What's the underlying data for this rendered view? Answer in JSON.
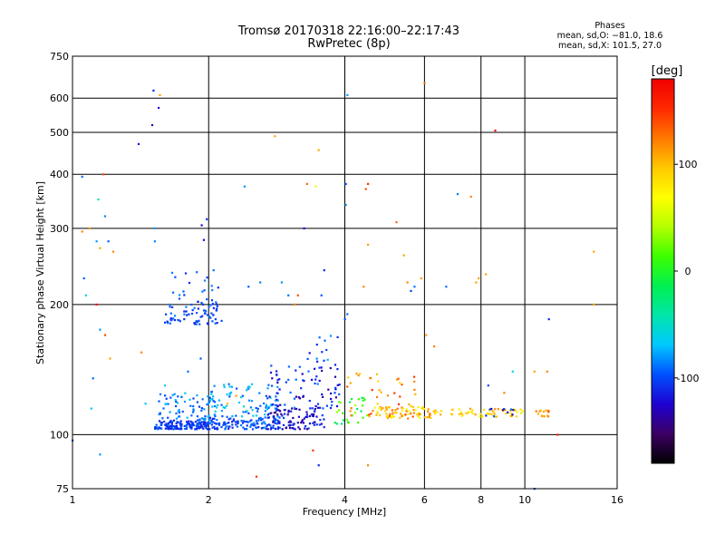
{
  "chart_data": {
    "type": "scatter",
    "title": "Tromsø 20170318 22:16:00–22:17:43",
    "subtitle": "RwPretec (8p)",
    "xlabel": "Frequency [MHz]",
    "ylabel": "Stationary phase Virtual Height [km]",
    "xscale": "log",
    "yscale": "log",
    "xlim": [
      1,
      16
    ],
    "ylim": [
      75,
      750
    ],
    "xticks": [
      1,
      2,
      4,
      6,
      8,
      10,
      16
    ],
    "xtick_labels": [
      "1",
      "2",
      "4",
      "6",
      "8",
      "10",
      "16"
    ],
    "yticks": [
      75,
      100,
      200,
      300,
      400,
      500,
      600,
      750
    ],
    "ytick_labels": [
      "75",
      "100",
      "200",
      "300",
      "400",
      "500",
      "600",
      "750"
    ],
    "grid": true,
    "colorbar": {
      "label": "[deg]",
      "range": [
        -180,
        180
      ],
      "ticks": [
        100,
        0,
        -100
      ],
      "tick_labels": [
        "100",
        "0",
        "-100"
      ],
      "colors": [
        "#000000",
        "#3c0064",
        "#1e00d2",
        "#0050ff",
        "#00c8ff",
        "#00e6aa",
        "#00f050",
        "#3cff00",
        "#b4ff00",
        "#ffff00",
        "#ffc800",
        "#ff7800",
        "#ff2800",
        "#f00000"
      ]
    },
    "stats": {
      "heading": "Phases",
      "line1": "mean, sd,O: −81.0, 18.6",
      "line2": "mean, sd,X: 101.5, 27.0"
    },
    "clusters": [
      {
        "f": [
          1.52,
          2.0
        ],
        "h": [
          103,
          108
        ],
        "phase": [
          -120,
          -90
        ],
        "n": 150
      },
      {
        "f": [
          1.55,
          2.05
        ],
        "h": [
          108,
          125
        ],
        "phase": [
          -110,
          -65
        ],
        "n": 70
      },
      {
        "f": [
          2.0,
          2.9
        ],
        "h": [
          103,
          110
        ],
        "phase": [
          -115,
          -85
        ],
        "n": 110
      },
      {
        "f": [
          2.0,
          2.9
        ],
        "h": [
          110,
          132
        ],
        "phase": [
          -100,
          -55
        ],
        "n": 90
      },
      {
        "f": [
          2.7,
          3.6
        ],
        "h": [
          103,
          115
        ],
        "phase": [
          -150,
          -100
        ],
        "n": 90
      },
      {
        "f": [
          2.7,
          3.9
        ],
        "h": [
          115,
          145
        ],
        "phase": [
          -140,
          -80
        ],
        "n": 80
      },
      {
        "f": [
          3.3,
          3.9
        ],
        "h": [
          145,
          170
        ],
        "phase": [
          -120,
          -70
        ],
        "n": 14
      },
      {
        "f": [
          1.6,
          2.15
        ],
        "h": [
          180,
          205
        ],
        "phase": [
          -115,
          -85
        ],
        "n": 75
      },
      {
        "f": [
          1.65,
          2.1
        ],
        "h": [
          205,
          238
        ],
        "phase": [
          -110,
          -80
        ],
        "n": 18
      },
      {
        "f": [
          3.8,
          4.6
        ],
        "h": [
          106,
          122
        ],
        "phase": [
          -40,
          40
        ],
        "n": 28
      },
      {
        "f": [
          4.0,
          5.8
        ],
        "h": [
          110,
          140
        ],
        "phase": [
          80,
          150
        ],
        "n": 50
      },
      {
        "f": [
          4.6,
          6.2
        ],
        "h": [
          109,
          116
        ],
        "phase": [
          60,
          130
        ],
        "n": 60
      },
      {
        "f": [
          6.0,
          10.0
        ],
        "h": [
          110,
          115
        ],
        "phase": [
          70,
          120
        ],
        "n": 60
      },
      {
        "f": [
          8.2,
          9.5
        ],
        "h": [
          110,
          115
        ],
        "phase": [
          -140,
          -90
        ],
        "n": 10
      },
      {
        "f": [
          10.5,
          11.3
        ],
        "h": [
          110,
          114
        ],
        "phase": [
          100,
          140
        ],
        "n": 14
      }
    ],
    "scattered": [
      [
        1.0,
        97,
        -100
      ],
      [
        1.05,
        395,
        -90
      ],
      [
        1.07,
        210,
        -60
      ],
      [
        1.06,
        230,
        -95
      ],
      [
        1.09,
        300,
        115
      ],
      [
        1.05,
        295,
        120
      ],
      [
        1.17,
        400,
        140
      ],
      [
        1.13,
        280,
        -80
      ],
      [
        1.14,
        350,
        -40
      ],
      [
        1.13,
        200,
        170
      ],
      [
        1.15,
        270,
        110
      ],
      [
        1.18,
        170,
        140
      ],
      [
        1.15,
        175,
        -80
      ],
      [
        1.11,
        135,
        -90
      ],
      [
        1.21,
        150,
        110
      ],
      [
        1.18,
        320,
        -85
      ],
      [
        1.2,
        280,
        -95
      ],
      [
        1.23,
        265,
        120
      ],
      [
        1.1,
        115,
        -70
      ],
      [
        1.15,
        90,
        -80
      ],
      [
        1.4,
        470,
        -120
      ],
      [
        1.42,
        155,
        120
      ],
      [
        1.5,
        520,
        -130
      ],
      [
        1.51,
        625,
        -110
      ],
      [
        1.52,
        300,
        -80
      ],
      [
        1.52,
        280,
        -85
      ],
      [
        1.55,
        570,
        -120
      ],
      [
        1.56,
        610,
        110
      ],
      [
        1.93,
        305,
        -125
      ],
      [
        1.98,
        315,
        -110
      ],
      [
        1.95,
        282,
        -120
      ],
      [
        2.05,
        240,
        -90
      ],
      [
        1.92,
        150,
        -95
      ],
      [
        1.8,
        140,
        -90
      ],
      [
        2.4,
        375,
        -80
      ],
      [
        2.8,
        490,
        110
      ],
      [
        2.55,
        80,
        150
      ],
      [
        2.45,
        220,
        -95
      ],
      [
        2.6,
        225,
        -85
      ],
      [
        2.9,
        225,
        -80
      ],
      [
        3.0,
        210,
        -90
      ],
      [
        3.1,
        200,
        120
      ],
      [
        3.15,
        210,
        140
      ],
      [
        3.25,
        300,
        -120
      ],
      [
        3.3,
        380,
        130
      ],
      [
        3.45,
        375,
        60
      ],
      [
        3.5,
        455,
        105
      ],
      [
        3.6,
        240,
        -110
      ],
      [
        3.55,
        210,
        -95
      ],
      [
        3.8,
        125,
        -100
      ],
      [
        4.05,
        610,
        -80
      ],
      [
        4.02,
        380,
        -95
      ],
      [
        4.02,
        340,
        -80
      ],
      [
        4.0,
        185,
        -100
      ],
      [
        4.05,
        190,
        -90
      ],
      [
        3.4,
        92,
        150
      ],
      [
        3.5,
        85,
        -110
      ],
      [
        4.5,
        380,
        150
      ],
      [
        4.45,
        370,
        140
      ],
      [
        4.5,
        275,
        110
      ],
      [
        4.4,
        220,
        120
      ],
      [
        4.5,
        85,
        120
      ],
      [
        5.2,
        310,
        130
      ],
      [
        5.6,
        215,
        -100
      ],
      [
        5.7,
        220,
        -90
      ],
      [
        5.5,
        225,
        120
      ],
      [
        5.9,
        230,
        110
      ],
      [
        5.4,
        260,
        110
      ],
      [
        6.0,
        650,
        130
      ],
      [
        6.05,
        170,
        110
      ],
      [
        6.3,
        160,
        120
      ],
      [
        6.7,
        220,
        -90
      ],
      [
        7.1,
        360,
        -85
      ],
      [
        7.6,
        355,
        120
      ],
      [
        7.8,
        225,
        110
      ],
      [
        7.9,
        230,
        110
      ],
      [
        8.2,
        235,
        110
      ],
      [
        8.6,
        505,
        170
      ],
      [
        8.3,
        130,
        -100
      ],
      [
        9.0,
        125,
        120
      ],
      [
        9.4,
        140,
        -60
      ],
      [
        10.5,
        140,
        110
      ],
      [
        10.5,
        75,
        -100
      ],
      [
        11.2,
        140,
        120
      ],
      [
        11.3,
        185,
        -110
      ],
      [
        11.8,
        100,
        160
      ],
      [
        14.2,
        265,
        110
      ],
      [
        14.2,
        200,
        110
      ],
      [
        1.45,
        118,
        -70
      ],
      [
        1.6,
        130,
        -60
      ],
      [
        2.2,
        118,
        100
      ],
      [
        2.3,
        123,
        110
      ]
    ]
  }
}
